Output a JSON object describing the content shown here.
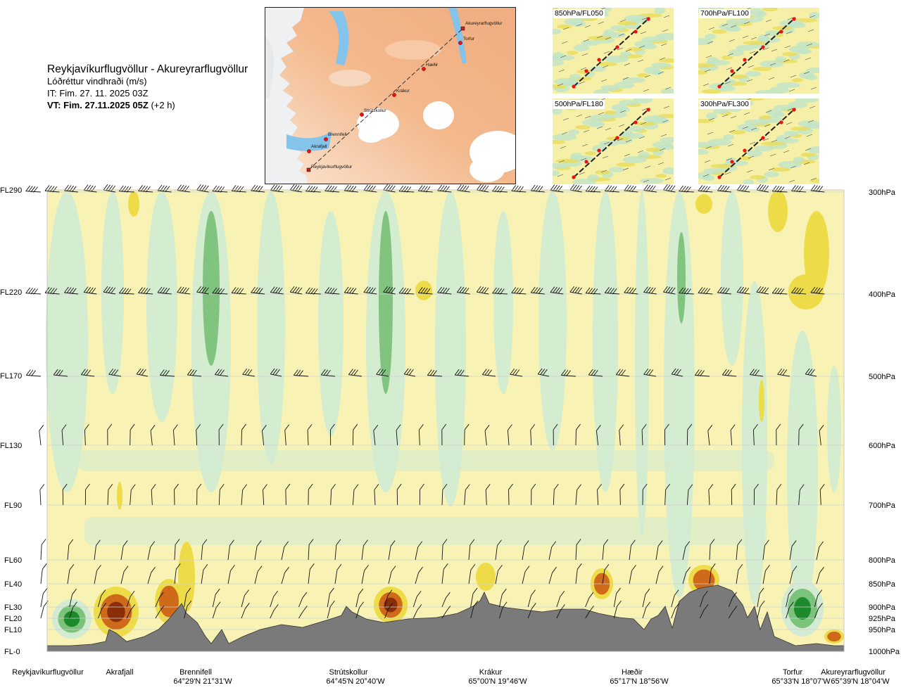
{
  "header": {
    "route": "Reykjavíkurflugvöllur - Akureyrarflugvöllur",
    "parameter": "Lóðréttur vindhraði (m/s)",
    "issue_time": "IT: Fim. 27. 11. 2025 03Z",
    "valid_time_bold": "VT: Fim. 27.11.2025 05Z",
    "valid_offset": "(+2 h)"
  },
  "route_map": {
    "waypoints": [
      "Akureyrarflugvöllur",
      "Torfur",
      "Hæðir",
      "Krákur",
      "Strútskollur",
      "Brennifell",
      "Akrafjall",
      "Reykjavíkurflugvöllur"
    ]
  },
  "level_maps": [
    {
      "label": "850hPa/FL050"
    },
    {
      "label": "700hPa/FL100"
    },
    {
      "label": "500hPa/FL180"
    },
    {
      "label": "300hPa/FL300"
    }
  ],
  "colors": {
    "strong_down": "#8a2e0a",
    "down": "#cf6a1a",
    "weak_down": "#eddc48",
    "near_zero": "#f8f3b4",
    "weak_up": "#d2ebd2",
    "up": "#7bc27b",
    "strong_up": "#1a8a2a",
    "terrain": "#7a7a7a"
  },
  "chart_data": {
    "type": "heatmap",
    "title": "Reykjavíkurflugvöllur - Akureyrarflugvöllur",
    "subtitle": "Lóðréttur vindhraði (m/s)",
    "left_axis_labels": [
      "FL290",
      "FL220",
      "FL170",
      "FL130",
      "FL90",
      "FL60",
      "FL40",
      "FL30",
      "FL20",
      "FL10",
      "FL-0"
    ],
    "right_axis_labels": [
      "300hPa",
      "400hPa",
      "500hPa",
      "600hPa",
      "700hPa",
      "800hPa",
      "850hPa",
      "900hPa",
      "925hPa",
      "950hPa",
      "1000hPa"
    ],
    "pressure_levels_hpa": [
      300,
      400,
      500,
      600,
      700,
      800,
      850,
      900,
      925,
      950,
      1000
    ],
    "x_locations": [
      {
        "name": "Reykjavíkurflugvöllur",
        "coord": ""
      },
      {
        "name": "Akrafjall",
        "coord": ""
      },
      {
        "name": "Brennifell",
        "coord": "64°29'N 21°31'W"
      },
      {
        "name": "Strútskollur",
        "coord": "64°45'N 20°40'W"
      },
      {
        "name": "Krákur",
        "coord": "65°00'N 19°46'W"
      },
      {
        "name": "Hæðir",
        "coord": "65°17'N 18°56'W"
      },
      {
        "name": "Torfur",
        "coord": "65°33'N 18°07'W"
      },
      {
        "name": "Akureyrarflugvöllur",
        "coord": "65°39'N 18°04'W"
      }
    ],
    "grid": true,
    "color_scale": "vertical velocity, green = upward, yellow/brown = downward"
  }
}
